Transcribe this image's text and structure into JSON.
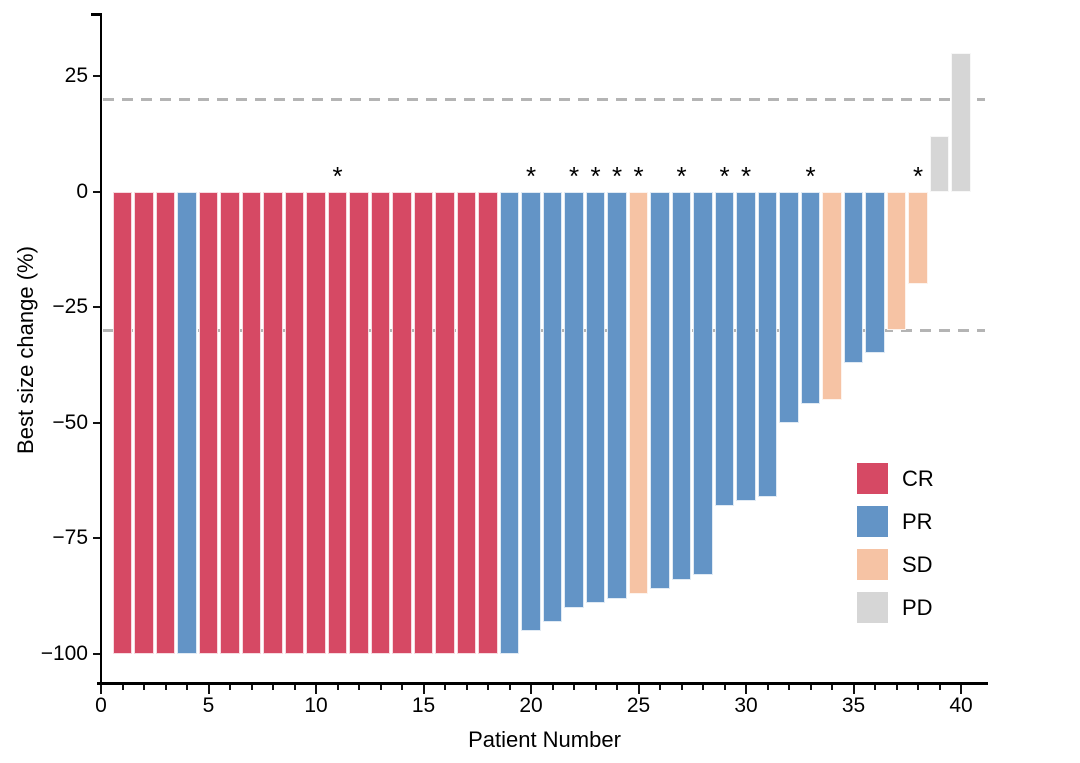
{
  "chart_data": {
    "type": "bar",
    "subtype": "waterfall",
    "title": "",
    "xlabel": "Patient Number",
    "ylabel": "Best size change (%)",
    "x_axis": {
      "ticks_major": [
        0,
        5,
        10,
        15,
        20,
        25,
        30,
        35,
        40
      ],
      "minor_tick_every": 1,
      "range": [
        0,
        41
      ]
    },
    "y_axis": {
      "ticks": [
        25,
        0,
        -25,
        -50,
        -75,
        -100
      ],
      "range": [
        -106,
        38
      ],
      "grid": false
    },
    "reference_lines": {
      "values": [
        20,
        -30
      ],
      "style": "dashed",
      "color": "#b4b4b4"
    },
    "annotation_symbol": "*",
    "legend": {
      "position": "inside-right",
      "items": [
        {
          "label": "CR",
          "color": "#d64964"
        },
        {
          "label": "PR",
          "color": "#6394c6"
        },
        {
          "label": "SD",
          "color": "#f6c3a4"
        },
        {
          "label": "PD",
          "color": "#d6d6d6"
        }
      ]
    },
    "patients": [
      {
        "patient": 1,
        "response": "CR",
        "change": -100,
        "asterisk": false
      },
      {
        "patient": 2,
        "response": "CR",
        "change": -100,
        "asterisk": false
      },
      {
        "patient": 3,
        "response": "CR",
        "change": -100,
        "asterisk": false
      },
      {
        "patient": 4,
        "response": "PR",
        "change": -100,
        "asterisk": false
      },
      {
        "patient": 5,
        "response": "CR",
        "change": -100,
        "asterisk": false
      },
      {
        "patient": 6,
        "response": "CR",
        "change": -100,
        "asterisk": false
      },
      {
        "patient": 7,
        "response": "CR",
        "change": -100,
        "asterisk": false
      },
      {
        "patient": 8,
        "response": "CR",
        "change": -100,
        "asterisk": false
      },
      {
        "patient": 9,
        "response": "CR",
        "change": -100,
        "asterisk": false
      },
      {
        "patient": 10,
        "response": "CR",
        "change": -100,
        "asterisk": false
      },
      {
        "patient": 11,
        "response": "CR",
        "change": -100,
        "asterisk": true
      },
      {
        "patient": 12,
        "response": "CR",
        "change": -100,
        "asterisk": false
      },
      {
        "patient": 13,
        "response": "CR",
        "change": -100,
        "asterisk": false
      },
      {
        "patient": 14,
        "response": "CR",
        "change": -100,
        "asterisk": false
      },
      {
        "patient": 15,
        "response": "CR",
        "change": -100,
        "asterisk": false
      },
      {
        "patient": 16,
        "response": "CR",
        "change": -100,
        "asterisk": false
      },
      {
        "patient": 17,
        "response": "CR",
        "change": -100,
        "asterisk": false
      },
      {
        "patient": 18,
        "response": "CR",
        "change": -100,
        "asterisk": false
      },
      {
        "patient": 19,
        "response": "PR",
        "change": -100,
        "asterisk": false
      },
      {
        "patient": 20,
        "response": "PR",
        "change": -95,
        "asterisk": true
      },
      {
        "patient": 21,
        "response": "PR",
        "change": -93,
        "asterisk": false
      },
      {
        "patient": 22,
        "response": "PR",
        "change": -90,
        "asterisk": true
      },
      {
        "patient": 23,
        "response": "PR",
        "change": -89,
        "asterisk": true
      },
      {
        "patient": 24,
        "response": "PR",
        "change": -88,
        "asterisk": true
      },
      {
        "patient": 25,
        "response": "SD",
        "change": -87,
        "asterisk": true
      },
      {
        "patient": 26,
        "response": "PR",
        "change": -86,
        "asterisk": false
      },
      {
        "patient": 27,
        "response": "PR",
        "change": -84,
        "asterisk": true
      },
      {
        "patient": 28,
        "response": "PR",
        "change": -83,
        "asterisk": false
      },
      {
        "patient": 29,
        "response": "PR",
        "change": -68,
        "asterisk": true
      },
      {
        "patient": 30,
        "response": "PR",
        "change": -67,
        "asterisk": true
      },
      {
        "patient": 31,
        "response": "PR",
        "change": -66,
        "asterisk": false
      },
      {
        "patient": 32,
        "response": "PR",
        "change": -50,
        "asterisk": false
      },
      {
        "patient": 33,
        "response": "PR",
        "change": -46,
        "asterisk": true
      },
      {
        "patient": 34,
        "response": "SD",
        "change": -45,
        "asterisk": false
      },
      {
        "patient": 35,
        "response": "PR",
        "change": -37,
        "asterisk": false
      },
      {
        "patient": 36,
        "response": "PR",
        "change": -35,
        "asterisk": false
      },
      {
        "patient": 37,
        "response": "SD",
        "change": -30,
        "asterisk": false
      },
      {
        "patient": 38,
        "response": "SD",
        "change": -20,
        "asterisk": true
      },
      {
        "patient": 39,
        "response": "PD",
        "change": 12,
        "asterisk": false
      },
      {
        "patient": 40,
        "response": "PD",
        "change": 30,
        "asterisk": false
      }
    ]
  }
}
